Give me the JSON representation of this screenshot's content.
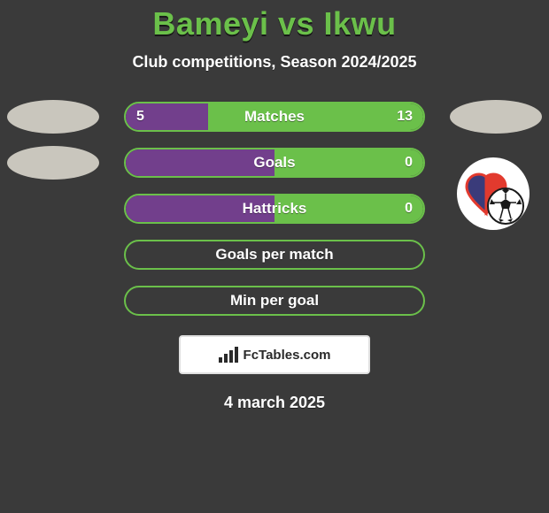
{
  "title": "Bameyi vs Ikwu",
  "subtitle": "Club competitions, Season 2024/2025",
  "date": "4 march 2025",
  "badge": {
    "text": "FcTables.com"
  },
  "colors": {
    "title": "#6bc04a",
    "background": "#3a3a3a",
    "fill_left_purple": "#723f8c",
    "fill_right_green": "#6bc04a",
    "border_green": "#6bc04a",
    "neutral_gray": "#c9c6bd"
  },
  "logo": {
    "heart_fill": "#3a3b7a",
    "heart_stroke": "#e23a2e",
    "ball_bg": "#ffffff",
    "ball_pattern": "#1a1a1a"
  },
  "rows": [
    {
      "label": "Matches",
      "left_value": "5",
      "right_value": "13",
      "left_pct": 27.8,
      "right_pct": 72.2,
      "left_color": "#723f8c",
      "right_color": "#6bc04a",
      "border_color": "#6bc04a",
      "show_ovals": true,
      "oval_color": "#c9c6bd"
    },
    {
      "label": "Goals",
      "left_value": "",
      "right_value": "0",
      "left_pct": 50,
      "right_pct": 50,
      "left_color": "#723f8c",
      "right_color": "#6bc04a",
      "border_color": "#6bc04a",
      "show_ovals": true,
      "oval_left_only": true,
      "oval_color": "#c9c6bd"
    },
    {
      "label": "Hattricks",
      "left_value": "",
      "right_value": "0",
      "left_pct": 50,
      "right_pct": 50,
      "left_color": "#723f8c",
      "right_color": "#6bc04a",
      "border_color": "#6bc04a",
      "show_ovals": false
    },
    {
      "label": "Goals per match",
      "left_value": "",
      "right_value": "",
      "left_pct": 0,
      "right_pct": 0,
      "left_color": "",
      "right_color": "",
      "border_color": "#6bc04a",
      "show_ovals": false
    },
    {
      "label": "Min per goal",
      "left_value": "",
      "right_value": "",
      "left_pct": 0,
      "right_pct": 0,
      "left_color": "",
      "right_color": "",
      "border_color": "#6bc04a",
      "show_ovals": false
    }
  ]
}
